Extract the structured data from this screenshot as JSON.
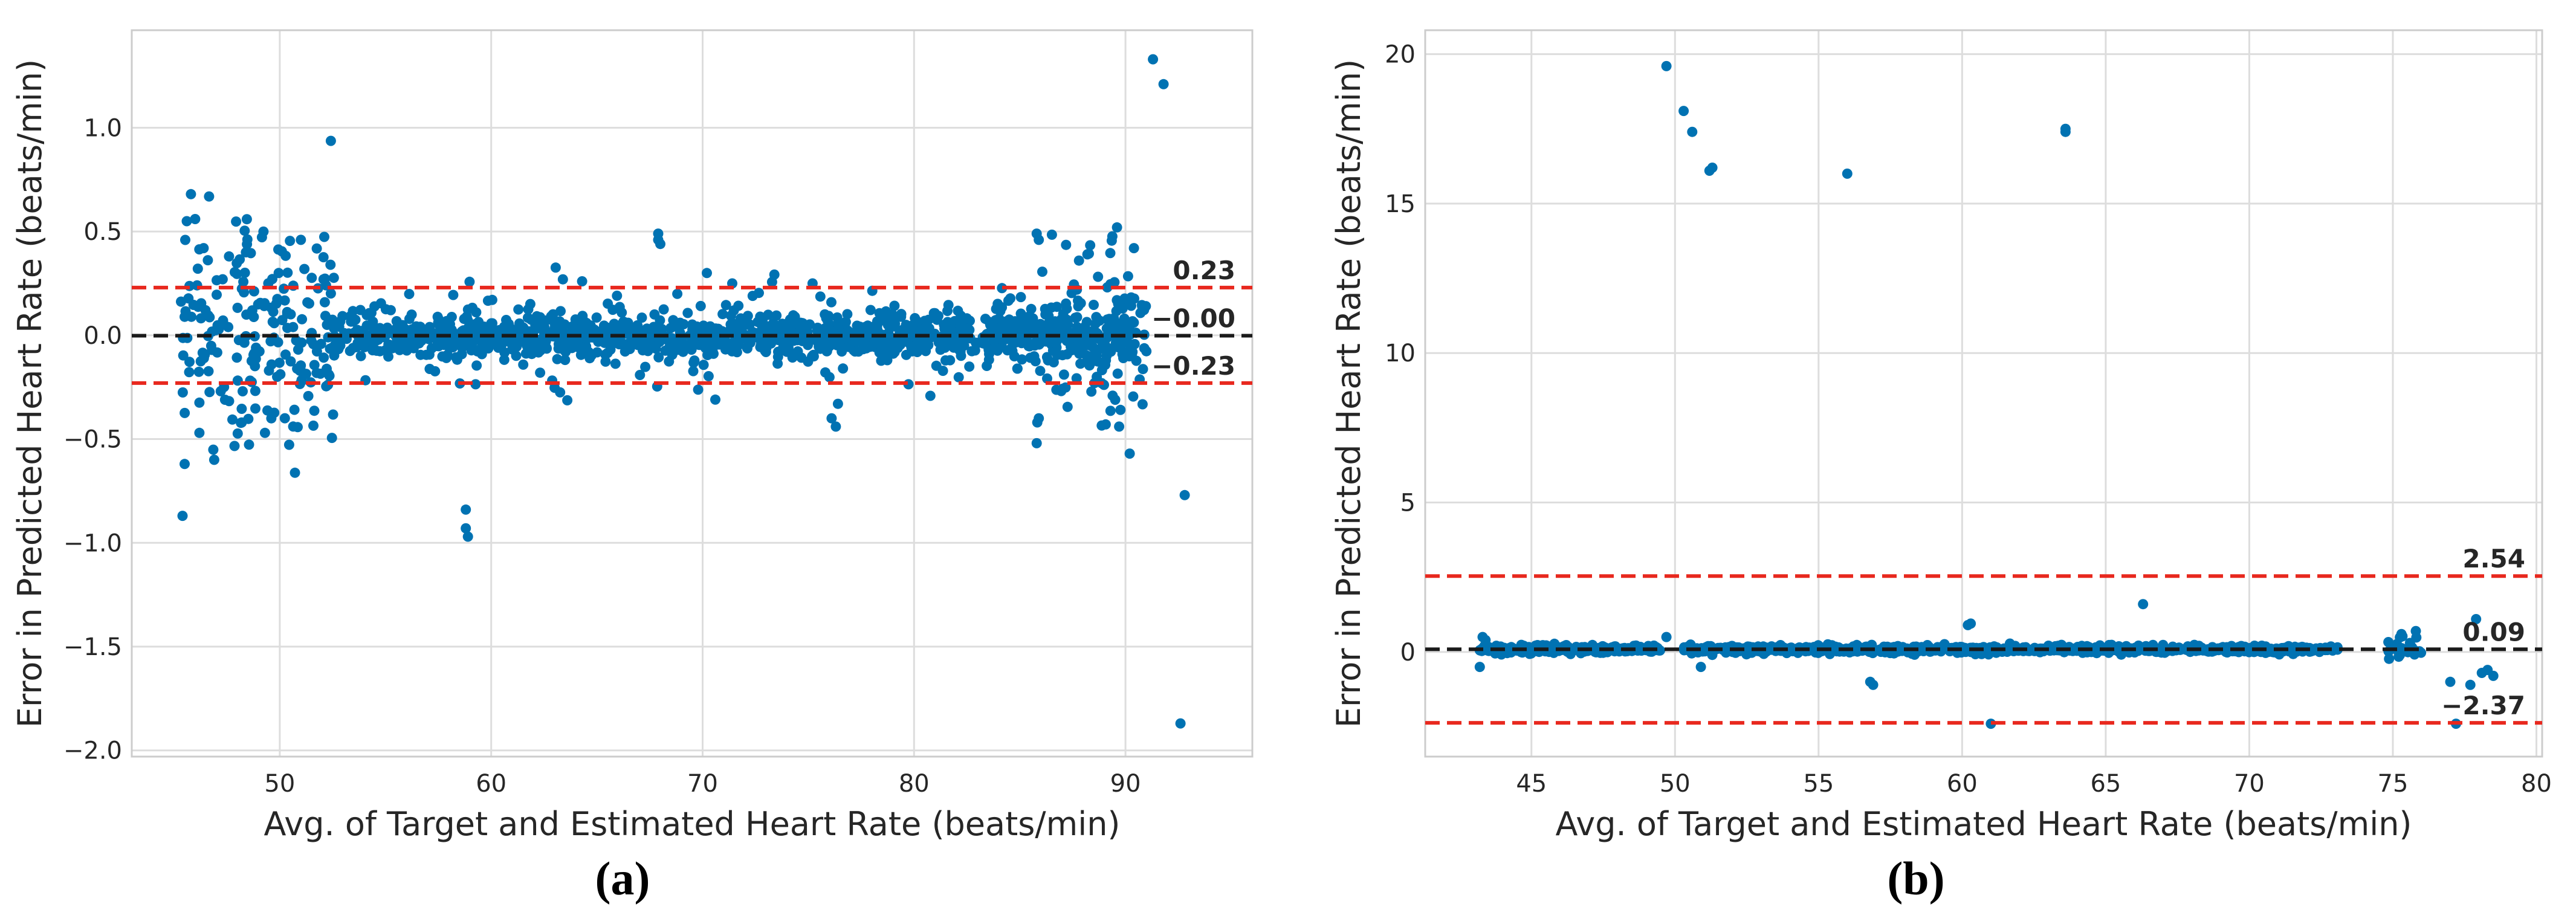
{
  "colors": {
    "points": "#0072b2",
    "limit_line": "#e8281e",
    "mean_line": "#1a1a1a",
    "grid": "#dddddd",
    "frame": "#cccccc"
  },
  "chart_data": [
    {
      "type": "scatter",
      "panel": "a",
      "caption": "(a)",
      "xlabel": "Avg. of Target and Estimated Heart Rate (beats/min)",
      "ylabel": "Error in Predicted Heart Rate (beats/min)",
      "xlim": [
        43,
        96
      ],
      "ylim": [
        -2.03,
        1.47
      ],
      "xticks": [
        50,
        60,
        70,
        80,
        90
      ],
      "xtick_labels": [
        "50",
        "60",
        "70",
        "80",
        "90"
      ],
      "yticks": [
        1.0,
        0.5,
        0.0,
        -0.5,
        -1.0,
        -1.5,
        -2.0
      ],
      "ytick_labels": [
        "1.0",
        "0.5",
        "0.0",
        "−0.5",
        "−1.0",
        "−1.5",
        "−2.0"
      ],
      "grid": true,
      "lines": [
        {
          "kind": "upper_limit",
          "value": 0.23,
          "label": "0.23"
        },
        {
          "kind": "mean",
          "value": -0.002,
          "label": "−0.00"
        },
        {
          "kind": "lower_limit",
          "value": -0.23,
          "label": "−0.23"
        }
      ],
      "clusters": [
        {
          "x": [
            45.3,
            52.6
          ],
          "count": 200,
          "spread": 0.25
        },
        {
          "x": [
            52.6,
            90.5
          ],
          "count": 1000,
          "spread": 0.05
        },
        {
          "x": [
            53.0,
            90.5
          ],
          "count": 260,
          "spread": 0.12
        },
        {
          "x": [
            85.5,
            91.0
          ],
          "count": 90,
          "spread": 0.22
        }
      ],
      "outliers": [
        [
          45.4,
          -0.87
        ],
        [
          45.5,
          -0.62
        ],
        [
          45.6,
          0.55
        ],
        [
          45.8,
          0.68
        ],
        [
          46.0,
          0.56
        ],
        [
          46.2,
          -0.47
        ],
        [
          46.4,
          0.42
        ],
        [
          46.9,
          -0.6
        ],
        [
          47.3,
          0.27
        ],
        [
          47.6,
          0.38
        ],
        [
          48.2,
          -0.42
        ],
        [
          48.4,
          0.4
        ],
        [
          49.3,
          -0.47
        ],
        [
          49.6,
          -0.4
        ],
        [
          51.0,
          0.46
        ],
        [
          52.4,
          0.34
        ],
        [
          58.8,
          -0.84
        ],
        [
          58.8,
          -0.93
        ],
        [
          58.9,
          -0.97
        ],
        [
          64.3,
          0.26
        ],
        [
          67.9,
          0.49
        ],
        [
          67.9,
          0.46
        ],
        [
          68.0,
          0.44
        ],
        [
          70.2,
          0.3
        ],
        [
          70.6,
          -0.31
        ],
        [
          71.4,
          0.25
        ],
        [
          75.2,
          0.25
        ],
        [
          76.1,
          -0.4
        ],
        [
          76.3,
          -0.44
        ],
        [
          76.4,
          -0.33
        ],
        [
          85.8,
          0.49
        ],
        [
          85.9,
          0.46
        ],
        [
          85.8,
          -0.52
        ],
        [
          85.9,
          -0.4
        ],
        [
          87.8,
          0.36
        ],
        [
          88.2,
          0.39
        ],
        [
          89.6,
          0.52
        ],
        [
          89.7,
          -0.44
        ],
        [
          90.2,
          -0.57
        ],
        [
          90.4,
          0.42
        ],
        [
          91.3,
          1.33
        ],
        [
          91.8,
          1.21
        ],
        [
          92.8,
          -0.77
        ],
        [
          92.6,
          -1.87
        ]
      ]
    },
    {
      "type": "scatter",
      "panel": "b",
      "caption": "(b)",
      "xlabel": "Avg. of Target and Estimated Heart Rate (beats/min)",
      "ylabel": "Error in Predicted Heart Rate (beats/min)",
      "xlim": [
        41.3,
        80.2
      ],
      "ylim": [
        -3.5,
        20.8
      ],
      "xticks": [
        45,
        50,
        55,
        60,
        65,
        70,
        75,
        80
      ],
      "xtick_labels": [
        "45",
        "50",
        "55",
        "60",
        "65",
        "70",
        "75",
        "80"
      ],
      "yticks": [
        20,
        15,
        10,
        5,
        0
      ],
      "ytick_labels": [
        "20",
        "15",
        "10",
        "5",
        "0"
      ],
      "grid": true,
      "lines": [
        {
          "kind": "upper_limit",
          "value": 2.54,
          "label": "2.54"
        },
        {
          "kind": "mean",
          "value": 0.09,
          "label": "0.09"
        },
        {
          "kind": "lower_limit",
          "value": -2.37,
          "label": "−2.37"
        }
      ],
      "clusters": [
        {
          "x": [
            43.2,
            49.5
          ],
          "count": 240,
          "spread": 0.07
        },
        {
          "x": [
            50.2,
            73.1
          ],
          "count": 850,
          "spread": 0.06
        },
        {
          "x": [
            74.8,
            76.0
          ],
          "count": 30,
          "spread": 0.15
        }
      ],
      "outliers": [
        [
          43.2,
          -0.5
        ],
        [
          43.3,
          0.5
        ],
        [
          43.4,
          0.4
        ],
        [
          49.7,
          19.6
        ],
        [
          50.3,
          18.1
        ],
        [
          50.6,
          17.4
        ],
        [
          51.2,
          16.1
        ],
        [
          51.3,
          16.2
        ],
        [
          56.0,
          16.0
        ],
        [
          63.6,
          17.4
        ],
        [
          63.6,
          17.5
        ],
        [
          49.7,
          0.5
        ],
        [
          50.9,
          -0.5
        ],
        [
          56.8,
          -1.0
        ],
        [
          56.9,
          -1.1
        ],
        [
          60.2,
          0.9
        ],
        [
          60.3,
          0.95
        ],
        [
          61.0,
          -2.4
        ],
        [
          66.3,
          1.6
        ],
        [
          75.3,
          0.6
        ],
        [
          75.8,
          0.7
        ],
        [
          77.0,
          -1.0
        ],
        [
          77.2,
          -2.4
        ],
        [
          77.7,
          -1.1
        ],
        [
          77.9,
          1.1
        ],
        [
          78.1,
          -0.7
        ],
        [
          78.3,
          -0.6
        ],
        [
          78.5,
          -0.8
        ]
      ]
    }
  ]
}
